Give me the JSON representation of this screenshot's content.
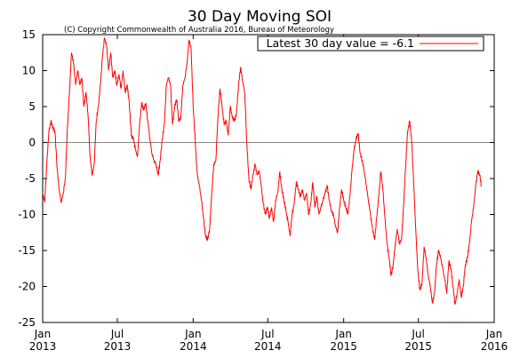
{
  "chart_data": {
    "type": "line",
    "title": "30 Day Moving SOI",
    "subtitle": "(C) Copyright Commonwealth of Australia 2016, Bureau of Meteorology",
    "xlabel": "",
    "ylabel": "",
    "xlim": [
      "2013-01",
      "2016-01"
    ],
    "ylim": [
      -25,
      15
    ],
    "yticks": [
      -25,
      -20,
      -15,
      -10,
      -5,
      0,
      5,
      10,
      15
    ],
    "xticks": [
      {
        "date": "2013-01",
        "month": "Jan",
        "year": "2013"
      },
      {
        "date": "2013-07",
        "month": "Jul",
        "year": "2013"
      },
      {
        "date": "2014-01",
        "month": "Jan",
        "year": "2014"
      },
      {
        "date": "2014-07",
        "month": "Jul",
        "year": "2014"
      },
      {
        "date": "2015-01",
        "month": "Jan",
        "year": "2015"
      },
      {
        "date": "2015-07",
        "month": "Jul",
        "year": "2015"
      },
      {
        "date": "2016-01",
        "month": "Jan",
        "year": "2016"
      }
    ],
    "zero_line": true,
    "grid": false,
    "legend_position": "top-right",
    "colors": {
      "series": "#ff0000",
      "axis": "#000000",
      "zero_line": "#888888"
    },
    "series": [
      {
        "name": "Latest 30 day value = -6.1",
        "points": [
          [
            "2013-01-01",
            -7.0
          ],
          [
            "2013-01-06",
            -8.3
          ],
          [
            "2013-01-11",
            -3.0
          ],
          [
            "2013-01-16",
            1.5
          ],
          [
            "2013-01-21",
            3.0
          ],
          [
            "2013-01-26",
            2.0
          ],
          [
            "2013-01-31",
            1.5
          ],
          [
            "2013-02-05",
            -3.5
          ],
          [
            "2013-02-10",
            -6.5
          ],
          [
            "2013-02-15",
            -8.3
          ],
          [
            "2013-02-20",
            -7.0
          ],
          [
            "2013-02-25",
            -5.0
          ],
          [
            "2013-03-02",
            2.0
          ],
          [
            "2013-03-07",
            7.0
          ],
          [
            "2013-03-12",
            12.5
          ],
          [
            "2013-03-17",
            11.0
          ],
          [
            "2013-03-22",
            8.0
          ],
          [
            "2013-03-27",
            10.0
          ],
          [
            "2013-04-01",
            8.0
          ],
          [
            "2013-04-06",
            9.0
          ],
          [
            "2013-04-11",
            5.0
          ],
          [
            "2013-04-16",
            7.0
          ],
          [
            "2013-04-21",
            4.0
          ],
          [
            "2013-04-26",
            -2.0
          ],
          [
            "2013-05-01",
            -4.5
          ],
          [
            "2013-05-06",
            -3.0
          ],
          [
            "2013-05-11",
            3.0
          ],
          [
            "2013-05-16",
            5.0
          ],
          [
            "2013-05-21",
            8.0
          ],
          [
            "2013-05-26",
            12.0
          ],
          [
            "2013-05-31",
            14.5
          ],
          [
            "2013-06-05",
            13.5
          ],
          [
            "2013-06-10",
            10.0
          ],
          [
            "2013-06-15",
            12.5
          ],
          [
            "2013-06-20",
            9.0
          ],
          [
            "2013-06-25",
            10.0
          ],
          [
            "2013-06-30",
            8.0
          ],
          [
            "2013-07-05",
            9.5
          ],
          [
            "2013-07-10",
            7.5
          ],
          [
            "2013-07-15",
            10.0
          ],
          [
            "2013-07-20",
            7.0
          ],
          [
            "2013-07-25",
            8.0
          ],
          [
            "2013-07-30",
            5.5
          ],
          [
            "2013-08-04",
            1.0
          ],
          [
            "2013-08-09",
            0.5
          ],
          [
            "2013-08-14",
            -1.0
          ],
          [
            "2013-08-19",
            -2.0
          ],
          [
            "2013-08-24",
            2.5
          ],
          [
            "2013-08-29",
            5.5
          ],
          [
            "2013-09-03",
            4.5
          ],
          [
            "2013-09-08",
            5.5
          ],
          [
            "2013-09-13",
            3.0
          ],
          [
            "2013-09-18",
            0.5
          ],
          [
            "2013-09-23",
            -1.5
          ],
          [
            "2013-09-28",
            -2.5
          ],
          [
            "2013-10-03",
            -3.0
          ],
          [
            "2013-10-08",
            -4.5
          ],
          [
            "2013-10-13",
            -2.5
          ],
          [
            "2013-10-18",
            0.5
          ],
          [
            "2013-10-23",
            2.5
          ],
          [
            "2013-10-28",
            8.0
          ],
          [
            "2013-11-02",
            9.0
          ],
          [
            "2013-11-07",
            8.0
          ],
          [
            "2013-11-12",
            2.5
          ],
          [
            "2013-11-17",
            5.0
          ],
          [
            "2013-11-22",
            6.0
          ],
          [
            "2013-11-27",
            3.0
          ],
          [
            "2013-12-02",
            3.5
          ],
          [
            "2013-12-07",
            8.0
          ],
          [
            "2013-12-12",
            9.0
          ],
          [
            "2013-12-17",
            11.0
          ],
          [
            "2013-12-22",
            14.3
          ],
          [
            "2013-12-27",
            13.0
          ],
          [
            "2014-01-01",
            5.0
          ],
          [
            "2014-01-06",
            0.0
          ],
          [
            "2014-01-11",
            -4.5
          ],
          [
            "2014-01-16",
            -6.0
          ],
          [
            "2014-01-21",
            -8.0
          ],
          [
            "2014-01-26",
            -10.5
          ],
          [
            "2014-01-31",
            -13.0
          ],
          [
            "2014-02-05",
            -13.5
          ],
          [
            "2014-02-10",
            -12.0
          ],
          [
            "2014-02-15",
            -7.0
          ],
          [
            "2014-02-20",
            -3.0
          ],
          [
            "2014-02-25",
            -2.5
          ],
          [
            "2014-03-02",
            3.5
          ],
          [
            "2014-03-07",
            7.5
          ],
          [
            "2014-03-12",
            5.0
          ],
          [
            "2014-03-17",
            2.5
          ],
          [
            "2014-03-22",
            3.0
          ],
          [
            "2014-03-27",
            1.0
          ],
          [
            "2014-04-01",
            5.0
          ],
          [
            "2014-04-06",
            3.5
          ],
          [
            "2014-04-11",
            3.0
          ],
          [
            "2014-04-16",
            4.0
          ],
          [
            "2014-04-21",
            8.0
          ],
          [
            "2014-04-26",
            10.5
          ],
          [
            "2014-05-01",
            8.5
          ],
          [
            "2014-05-06",
            7.0
          ],
          [
            "2014-05-11",
            0.0
          ],
          [
            "2014-05-16",
            -5.0
          ],
          [
            "2014-05-21",
            -6.5
          ],
          [
            "2014-05-26",
            -4.5
          ],
          [
            "2014-05-31",
            -3.0
          ],
          [
            "2014-06-05",
            -4.5
          ],
          [
            "2014-06-10",
            -4.0
          ],
          [
            "2014-06-15",
            -6.0
          ],
          [
            "2014-06-20",
            -8.5
          ],
          [
            "2014-06-25",
            -10.0
          ],
          [
            "2014-06-30",
            -9.0
          ],
          [
            "2014-07-05",
            -10.5
          ],
          [
            "2014-07-10",
            -9.0
          ],
          [
            "2014-07-15",
            -11.0
          ],
          [
            "2014-07-20",
            -8.0
          ],
          [
            "2014-07-25",
            -7.0
          ],
          [
            "2014-07-30",
            -4.0
          ],
          [
            "2014-08-04",
            -6.5
          ],
          [
            "2014-08-09",
            -8.0
          ],
          [
            "2014-08-14",
            -9.5
          ],
          [
            "2014-08-19",
            -11.0
          ],
          [
            "2014-08-24",
            -13.0
          ],
          [
            "2014-08-29",
            -10.0
          ],
          [
            "2014-09-03",
            -8.5
          ],
          [
            "2014-09-08",
            -5.5
          ],
          [
            "2014-09-13",
            -6.5
          ],
          [
            "2014-09-18",
            -7.5
          ],
          [
            "2014-09-23",
            -6.5
          ],
          [
            "2014-09-28",
            -8.0
          ],
          [
            "2014-10-03",
            -7.0
          ],
          [
            "2014-10-08",
            -10.0
          ],
          [
            "2014-10-13",
            -8.5
          ],
          [
            "2014-10-18",
            -5.5
          ],
          [
            "2014-10-23",
            -9.0
          ],
          [
            "2014-10-28",
            -7.5
          ],
          [
            "2014-11-02",
            -10.0
          ],
          [
            "2014-11-07",
            -9.0
          ],
          [
            "2014-11-12",
            -8.0
          ],
          [
            "2014-11-17",
            -7.0
          ],
          [
            "2014-11-22",
            -6.0
          ],
          [
            "2014-11-27",
            -8.0
          ],
          [
            "2014-12-02",
            -9.5
          ],
          [
            "2014-12-07",
            -10.0
          ],
          [
            "2014-12-12",
            -11.5
          ],
          [
            "2014-12-17",
            -12.5
          ],
          [
            "2014-12-22",
            -9.0
          ],
          [
            "2014-12-27",
            -6.5
          ],
          [
            "2015-01-01",
            -8.0
          ],
          [
            "2015-01-06",
            -9.0
          ],
          [
            "2015-01-11",
            -10.0
          ],
          [
            "2015-01-16",
            -7.5
          ],
          [
            "2015-01-21",
            -4.0
          ],
          [
            "2015-01-26",
            -1.0
          ],
          [
            "2015-01-31",
            0.5
          ],
          [
            "2015-02-05",
            1.3
          ],
          [
            "2015-02-10",
            -1.5
          ],
          [
            "2015-02-15",
            -2.5
          ],
          [
            "2015-02-20",
            -4.0
          ],
          [
            "2015-02-25",
            -6.0
          ],
          [
            "2015-03-02",
            -8.0
          ],
          [
            "2015-03-07",
            -10.0
          ],
          [
            "2015-03-12",
            -12.0
          ],
          [
            "2015-03-17",
            -13.5
          ],
          [
            "2015-03-22",
            -10.5
          ],
          [
            "2015-03-27",
            -7.5
          ],
          [
            "2015-04-01",
            -4.0
          ],
          [
            "2015-04-06",
            -6.5
          ],
          [
            "2015-04-11",
            -10.5
          ],
          [
            "2015-04-16",
            -14.0
          ],
          [
            "2015-04-21",
            -16.0
          ],
          [
            "2015-04-26",
            -18.5
          ],
          [
            "2015-05-01",
            -17.0
          ],
          [
            "2015-05-06",
            -14.0
          ],
          [
            "2015-05-11",
            -12.0
          ],
          [
            "2015-05-16",
            -14.0
          ],
          [
            "2015-05-21",
            -13.5
          ],
          [
            "2015-05-26",
            -9.0
          ],
          [
            "2015-05-31",
            -3.5
          ],
          [
            "2015-06-05",
            1.5
          ],
          [
            "2015-06-10",
            3.0
          ],
          [
            "2015-06-15",
            0.0
          ],
          [
            "2015-06-20",
            -6.0
          ],
          [
            "2015-06-25",
            -12.5
          ],
          [
            "2015-06-30",
            -18.0
          ],
          [
            "2015-07-05",
            -20.5
          ],
          [
            "2015-07-10",
            -19.5
          ],
          [
            "2015-07-15",
            -14.5
          ],
          [
            "2015-07-20",
            -16.0
          ],
          [
            "2015-07-25",
            -18.5
          ],
          [
            "2015-07-30",
            -20.0
          ],
          [
            "2015-08-04",
            -22.3
          ],
          [
            "2015-08-09",
            -21.0
          ],
          [
            "2015-08-14",
            -17.0
          ],
          [
            "2015-08-19",
            -15.0
          ],
          [
            "2015-08-24",
            -16.0
          ],
          [
            "2015-08-29",
            -17.5
          ],
          [
            "2015-09-03",
            -19.0
          ],
          [
            "2015-09-08",
            -21.0
          ],
          [
            "2015-09-13",
            -16.5
          ],
          [
            "2015-09-18",
            -17.5
          ],
          [
            "2015-09-23",
            -20.0
          ],
          [
            "2015-09-28",
            -22.5
          ],
          [
            "2015-10-03",
            -21.0
          ],
          [
            "2015-10-08",
            -19.0
          ],
          [
            "2015-10-13",
            -21.5
          ],
          [
            "2015-10-18",
            -20.0
          ],
          [
            "2015-10-23",
            -17.0
          ],
          [
            "2015-10-28",
            -16.0
          ],
          [
            "2015-11-02",
            -14.0
          ],
          [
            "2015-11-07",
            -11.0
          ],
          [
            "2015-11-12",
            -9.0
          ],
          [
            "2015-11-17",
            -6.0
          ],
          [
            "2015-11-22",
            -4.0
          ],
          [
            "2015-11-27",
            -4.5
          ],
          [
            "2015-12-01",
            -6.1
          ]
        ]
      }
    ]
  }
}
